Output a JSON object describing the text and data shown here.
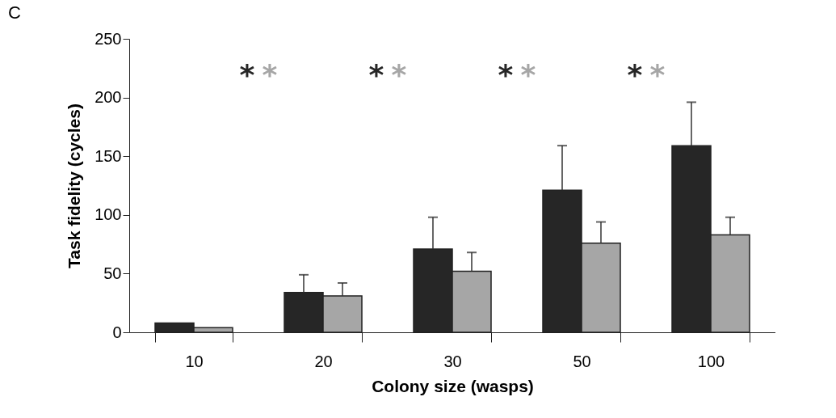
{
  "chart_data": {
    "type": "bar",
    "title": "C",
    "xlabel": "Colony size (wasps)",
    "ylabel": "Task fidelity (cycles)",
    "categories": [
      "10",
      "20",
      "30",
      "50",
      "100"
    ],
    "series": [
      {
        "color": "#262626",
        "values": [
          8,
          34,
          71,
          121,
          159
        ],
        "errors": [
          null,
          [
            34,
            49
          ],
          [
            71,
            98
          ],
          [
            121,
            159
          ],
          [
            159,
            196
          ]
        ]
      },
      {
        "color": "#a6a6a6",
        "values": [
          4,
          31,
          52,
          76,
          83
        ],
        "errors": [
          null,
          [
            31,
            42
          ],
          [
            52,
            68
          ],
          [
            76,
            94
          ],
          [
            83,
            98
          ]
        ]
      }
    ],
    "annotations": [
      "*",
      "*",
      "*",
      "*",
      "*",
      "*",
      "*",
      "*"
    ],
    "ylim": [
      0,
      250
    ],
    "yticks": [
      0,
      50,
      100,
      150,
      200,
      250
    ],
    "grid": false,
    "legend": false
  }
}
